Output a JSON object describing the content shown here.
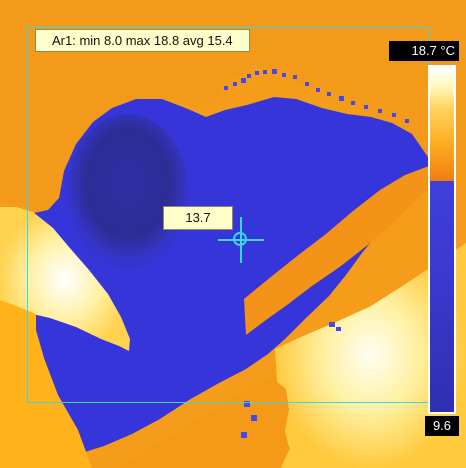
{
  "overlay": {
    "stats_text": "Ar1: min 8.0 max 18.8 avg 15.4",
    "spot_value": "13.7"
  },
  "scale": {
    "max_label": "18.7 °C",
    "min_label": "9.6"
  },
  "colors": {
    "measurement_box": "#38d7e6",
    "cold_blue": "#3434d8",
    "dark_blue": "#28289c",
    "warm_orange": "#f39a1a",
    "hot_yellow": "#fff2a3",
    "label_background": "#ffffcc"
  }
}
